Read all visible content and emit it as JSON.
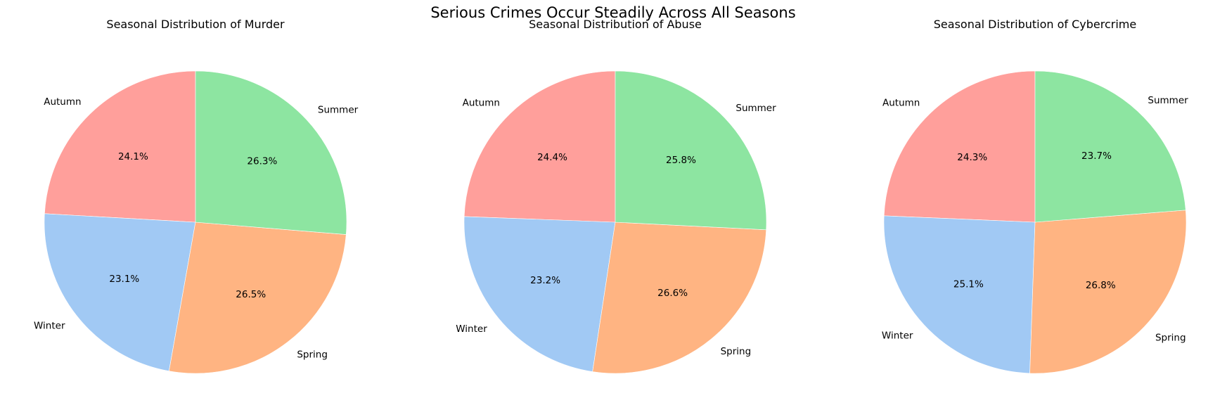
{
  "figure": {
    "suptitle": "Serious Crimes Occur Steadily Across All Seasons"
  },
  "chart_data": [
    {
      "type": "pie",
      "title": "Seasonal Distribution of Murder",
      "categories": [
        "Autumn",
        "Winter",
        "Spring",
        "Summer"
      ],
      "values": [
        24.1,
        23.1,
        26.5,
        26.3
      ],
      "value_labels": [
        "24.1%",
        "23.1%",
        "26.5%",
        "26.3%"
      ],
      "colors": [
        "#ff9f9b",
        "#a1c9f4",
        "#ffb482",
        "#8de5a1"
      ],
      "start_angle_deg": 90,
      "direction": "counterclockwise"
    },
    {
      "type": "pie",
      "title": "Seasonal Distribution of Abuse",
      "categories": [
        "Autumn",
        "Winter",
        "Spring",
        "Summer"
      ],
      "values": [
        24.4,
        23.2,
        26.6,
        25.8
      ],
      "value_labels": [
        "24.4%",
        "23.2%",
        "26.6%",
        "25.8%"
      ],
      "colors": [
        "#ff9f9b",
        "#a1c9f4",
        "#ffb482",
        "#8de5a1"
      ],
      "start_angle_deg": 90,
      "direction": "counterclockwise"
    },
    {
      "type": "pie",
      "title": "Seasonal Distribution of Cybercrime",
      "categories": [
        "Autumn",
        "Winter",
        "Spring",
        "Summer"
      ],
      "values": [
        24.3,
        25.1,
        26.8,
        23.7
      ],
      "value_labels": [
        "24.3%",
        "25.1%",
        "26.8%",
        "23.7%"
      ],
      "colors": [
        "#ff9f9b",
        "#a1c9f4",
        "#ffb482",
        "#8de5a1"
      ],
      "start_angle_deg": 90,
      "direction": "counterclockwise"
    }
  ]
}
